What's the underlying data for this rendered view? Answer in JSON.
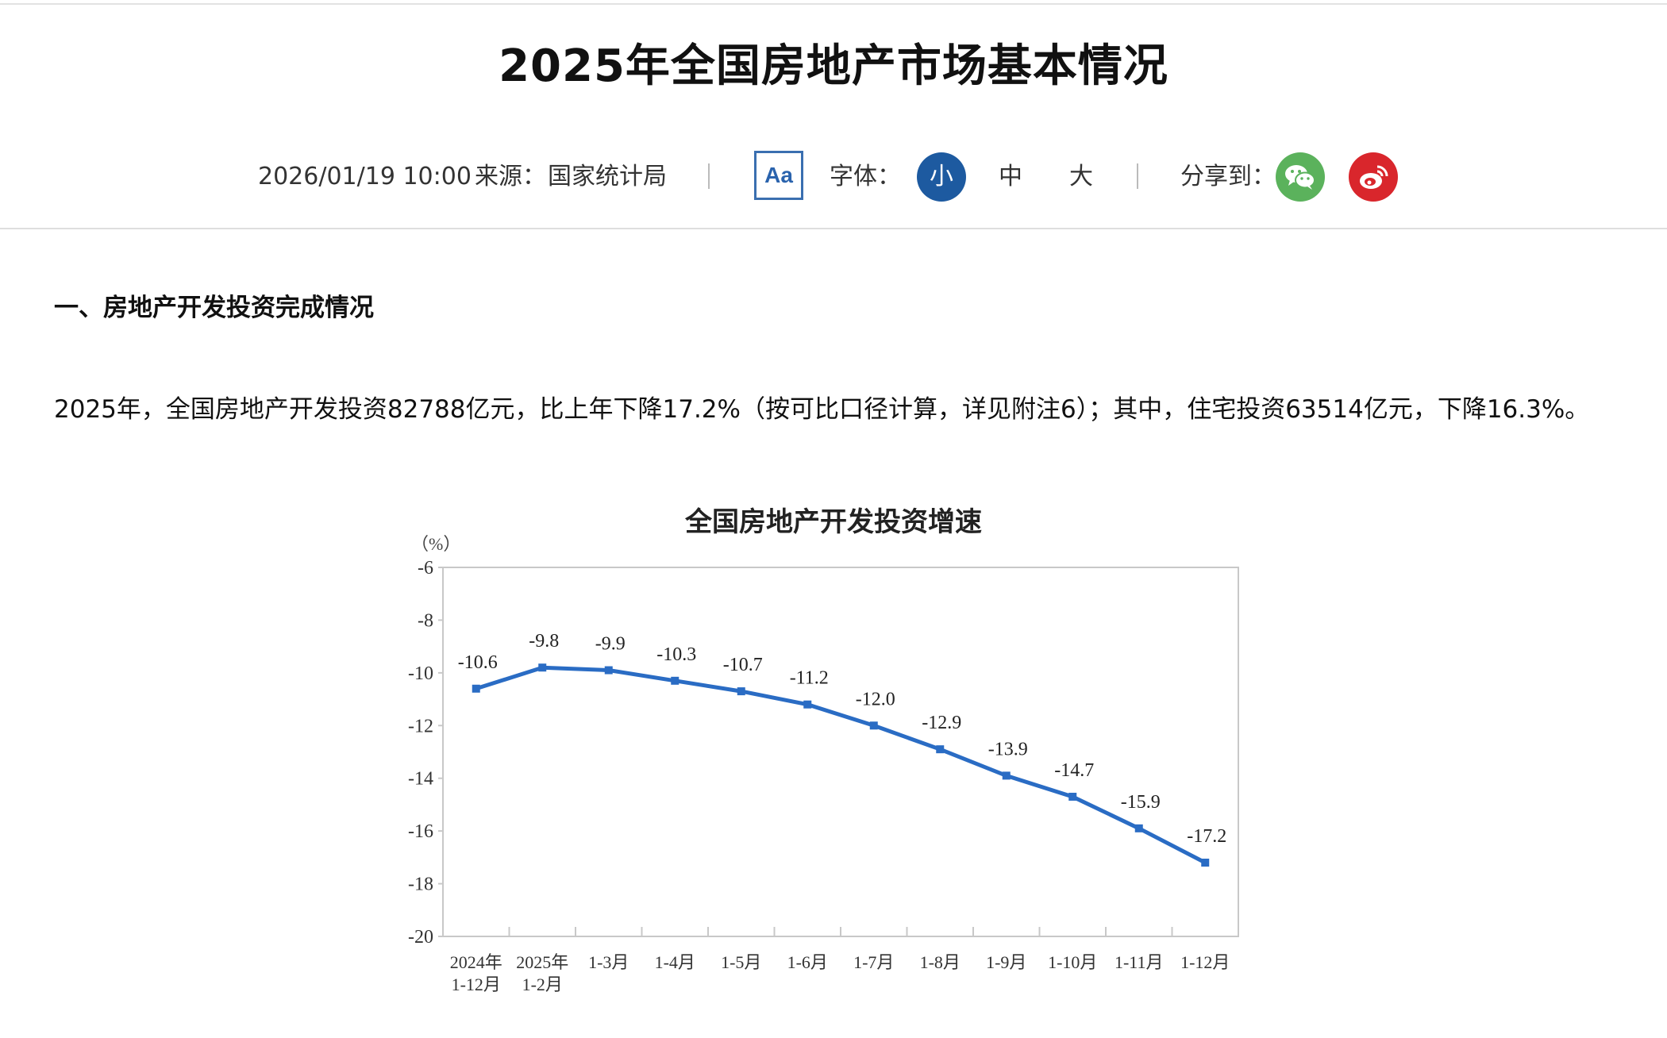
{
  "article": {
    "title": "2025年全国房地产市场基本情况",
    "datetime": "2026/01/19 10:00",
    "source_label": "来源：",
    "source": "国家统计局",
    "font_toggle_label": "Aa",
    "font_size_label": "字体：",
    "font_sizes": [
      "小",
      "中",
      "大"
    ],
    "font_size_selected": "小",
    "share_label": "分享到：",
    "share_targets": [
      {
        "name": "wechat",
        "color": "#5bb25c"
      },
      {
        "name": "weibo",
        "color": "#d9262c"
      }
    ]
  },
  "section": {
    "heading": "一、房地产开发投资完成情况",
    "paragraph": "2025年，全国房地产开发投资82788亿元，比上年下降17.2%（按可比口径计算，详见附注6）；其中，住宅投资63514亿元，下降16.3%。"
  },
  "colors": {
    "line": "#2a6cc4",
    "accent": "#1d5aa0"
  },
  "chart_data": {
    "type": "line",
    "title": "全国房地产开发投资增速",
    "ylabel": "（%）",
    "xlabel": "",
    "ylim": [
      -20,
      -6
    ],
    "yticks": [
      -6,
      -8,
      -10,
      -12,
      -14,
      -16,
      -18,
      -20
    ],
    "grid": false,
    "legend": null,
    "categories": [
      "2024年 1-12月",
      "2025年 1-2月",
      "1-3月",
      "1-4月",
      "1-5月",
      "1-6月",
      "1-7月",
      "1-8月",
      "1-9月",
      "1-10月",
      "1-11月",
      "1-12月"
    ],
    "category_lines": [
      [
        "2024年",
        "1-12月"
      ],
      [
        "2025年",
        "1-2月"
      ],
      [
        "1-3月"
      ],
      [
        "1-4月"
      ],
      [
        "1-5月"
      ],
      [
        "1-6月"
      ],
      [
        "1-7月"
      ],
      [
        "1-8月"
      ],
      [
        "1-9月"
      ],
      [
        "1-10月"
      ],
      [
        "1-11月"
      ],
      [
        "1-12月"
      ]
    ],
    "series": [
      {
        "name": "全国房地产开发投资增速",
        "values": [
          -10.6,
          -9.8,
          -9.9,
          -10.3,
          -10.7,
          -11.2,
          -12.0,
          -12.9,
          -13.9,
          -14.7,
          -15.9,
          -17.2
        ],
        "labels": [
          "-10.6",
          "-9.8",
          "-9.9",
          "-10.3",
          "-10.7",
          "-11.2",
          "-12.0",
          "-12.9",
          "-13.9",
          "-14.7",
          "-15.9",
          "-17.2"
        ]
      }
    ]
  }
}
